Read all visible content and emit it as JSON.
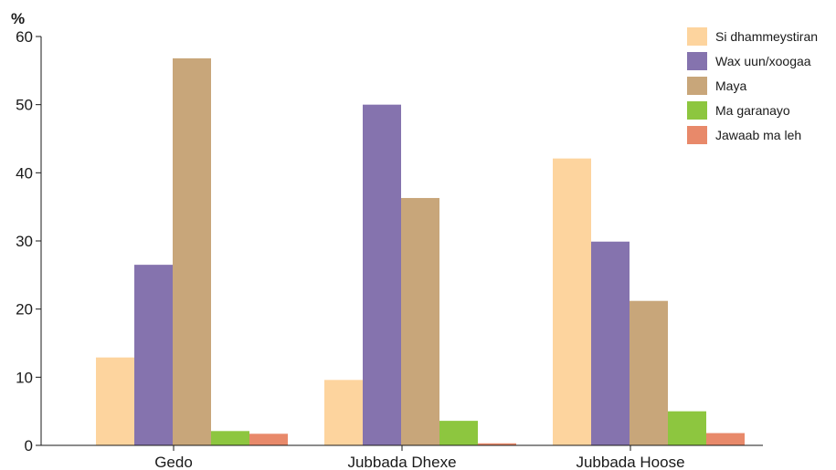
{
  "chart_data": {
    "type": "bar",
    "unit_label": "%",
    "categories": [
      "Gedo",
      "Jubbada Dhexe",
      "Jubbada Hoose"
    ],
    "series": [
      {
        "name": "Si dhammeystiran",
        "color": "#fdd49e",
        "values": [
          12.9,
          9.6,
          42.1
        ]
      },
      {
        "name": "Wax uun/xoogaa",
        "color": "#8573ae",
        "values": [
          26.5,
          50.0,
          29.9
        ]
      },
      {
        "name": "Maya",
        "color": "#c8a67a",
        "values": [
          56.8,
          36.3,
          21.2
        ]
      },
      {
        "name": "Ma garanayo",
        "color": "#8dc63f",
        "values": [
          2.1,
          3.6,
          5.0
        ]
      },
      {
        "name": "Jawaab ma leh",
        "color": "#e8896a",
        "values": [
          1.7,
          0.3,
          1.8
        ]
      }
    ],
    "ylim": [
      0,
      60
    ],
    "yticks": [
      0,
      10,
      20,
      30,
      40,
      50,
      60
    ],
    "legend_position": "top-right",
    "grid": false
  }
}
